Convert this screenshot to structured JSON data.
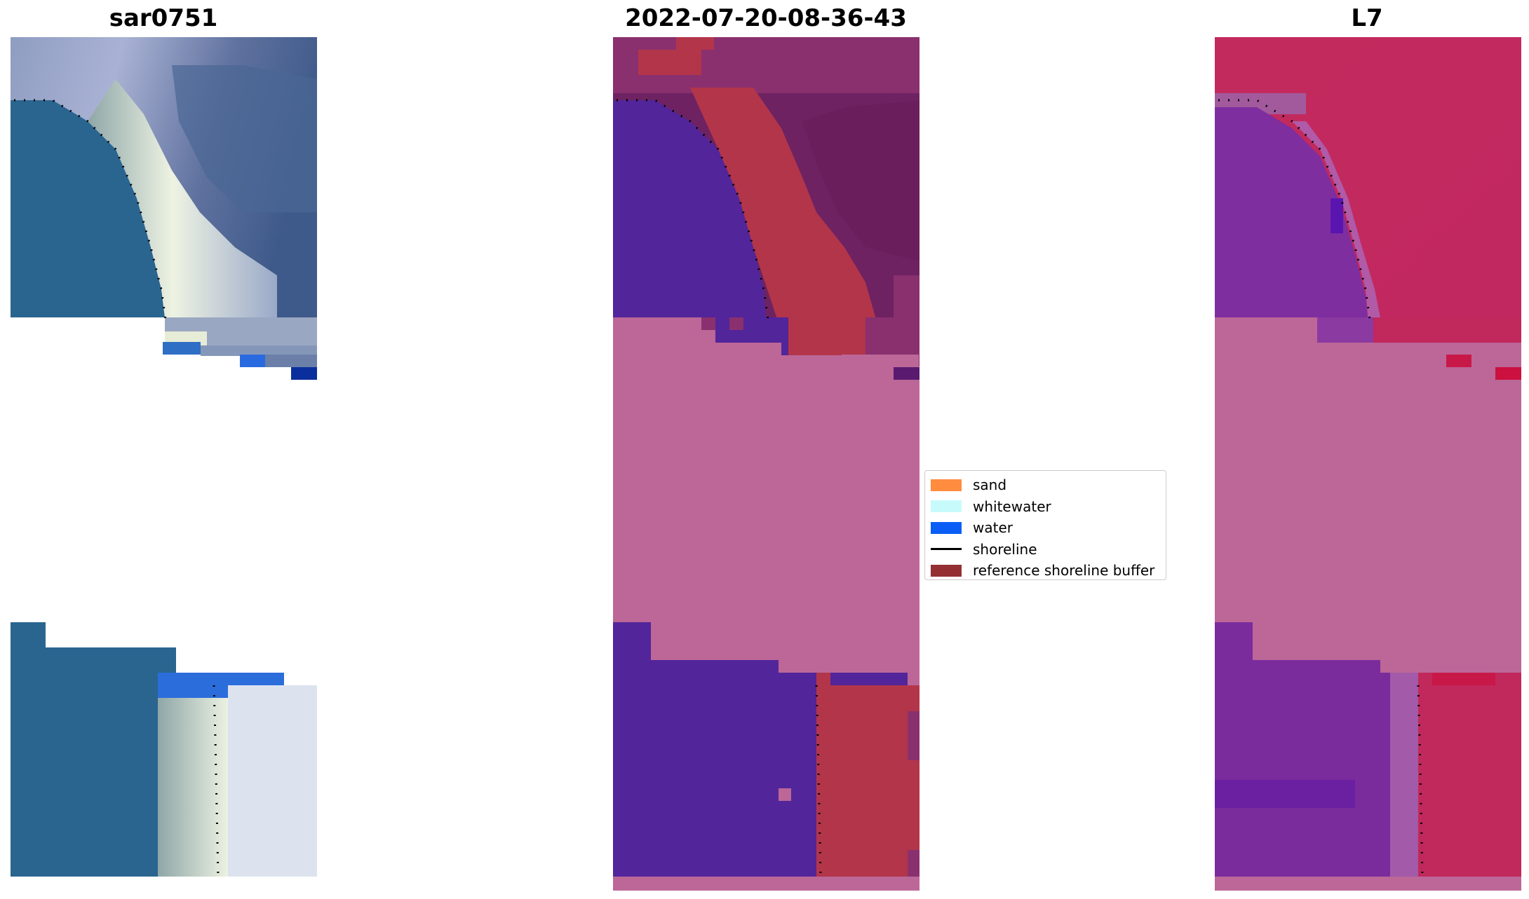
{
  "panels": [
    {
      "title": "sar0751"
    },
    {
      "title": "2022-07-20-08-36-43"
    },
    {
      "title": "L7"
    }
  ],
  "legend": {
    "placement": "center-right of middle panel",
    "items": [
      {
        "label": "sand",
        "color": "#ff8c3f"
      },
      {
        "label": "whitewater",
        "color": "#c7fbfb"
      },
      {
        "label": "water",
        "color": "#0a5ef5"
      },
      {
        "label": "shoreline",
        "color": "#000000",
        "kind": "line"
      },
      {
        "label": "reference shoreline buffer",
        "color": "#943033"
      }
    ]
  },
  "colors": {
    "rgb_water": "#23598a",
    "rgb_foam": "#e8efe4",
    "class_water": "#52259a",
    "class_land": "#6e2262",
    "class_buffer": "#b3354a",
    "class_nodata": "#bc6798",
    "ndwi_water": "#7d2da0",
    "ndwi_land": "#c1285c",
    "ndwi_nodata": "#bc6798"
  }
}
